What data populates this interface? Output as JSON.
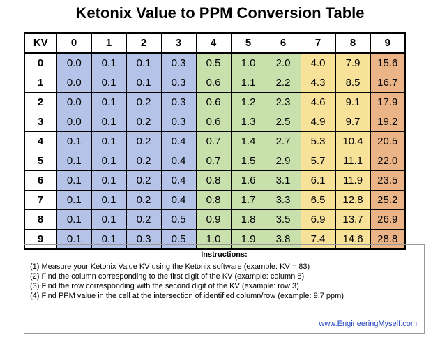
{
  "title": "Ketonix Value to PPM Conversion Table",
  "table": {
    "corner_label": "KV",
    "column_headers": [
      "0",
      "1",
      "2",
      "3",
      "4",
      "5",
      "6",
      "7",
      "8",
      "9"
    ],
    "column_colors": [
      "#b5c3e8",
      "#b5c3e8",
      "#b5c3e8",
      "#b5c3e8",
      "#c8e1ac",
      "#c8e1ac",
      "#c8e1ac",
      "#f8e29a",
      "#f8e29a",
      "#eab487"
    ],
    "rows": [
      {
        "kv": "0",
        "values": [
          "0.0",
          "0.1",
          "0.1",
          "0.3",
          "0.5",
          "1.0",
          "2.0",
          "4.0",
          "7.9",
          "15.6"
        ]
      },
      {
        "kv": "1",
        "values": [
          "0.0",
          "0.1",
          "0.1",
          "0.3",
          "0.6",
          "1.1",
          "2.2",
          "4.3",
          "8.5",
          "16.7"
        ]
      },
      {
        "kv": "2",
        "values": [
          "0.0",
          "0.1",
          "0.2",
          "0.3",
          "0.6",
          "1.2",
          "2.3",
          "4.6",
          "9.1",
          "17.9"
        ]
      },
      {
        "kv": "3",
        "values": [
          "0.0",
          "0.1",
          "0.2",
          "0.3",
          "0.6",
          "1.3",
          "2.5",
          "4.9",
          "9.7",
          "19.2"
        ]
      },
      {
        "kv": "4",
        "values": [
          "0.1",
          "0.1",
          "0.2",
          "0.4",
          "0.7",
          "1.4",
          "2.7",
          "5.3",
          "10.4",
          "20.5"
        ]
      },
      {
        "kv": "5",
        "values": [
          "0.1",
          "0.1",
          "0.2",
          "0.4",
          "0.7",
          "1.5",
          "2.9",
          "5.7",
          "11.1",
          "22.0"
        ]
      },
      {
        "kv": "6",
        "values": [
          "0.1",
          "0.1",
          "0.2",
          "0.4",
          "0.8",
          "1.6",
          "3.1",
          "6.1",
          "11.9",
          "23.5"
        ]
      },
      {
        "kv": "7",
        "values": [
          "0.1",
          "0.1",
          "0.2",
          "0.4",
          "0.8",
          "1.7",
          "3.3",
          "6.5",
          "12.8",
          "25.2"
        ]
      },
      {
        "kv": "8",
        "values": [
          "0.1",
          "0.1",
          "0.2",
          "0.5",
          "0.9",
          "1.8",
          "3.5",
          "6.9",
          "13.7",
          "26.9"
        ]
      },
      {
        "kv": "9",
        "values": [
          "0.1",
          "0.1",
          "0.3",
          "0.5",
          "1.0",
          "1.9",
          "3.8",
          "7.4",
          "14.6",
          "28.8"
        ]
      }
    ]
  },
  "instructions": {
    "heading": "Instructions:",
    "steps": [
      "(1) Measure your Ketonix Value KV using the Ketonix software (example: KV = 83)",
      "(2) Find the column corresponding to the first digit of the KV (example: column 8)",
      "(3) Find the row corresponding with the second digit of the KV (example: row 3)",
      "(4) Find PPM value in the cell at the intersection of identified column/row (example: 9.7 ppm)"
    ],
    "link": "www.EngineeringMyself.com"
  }
}
